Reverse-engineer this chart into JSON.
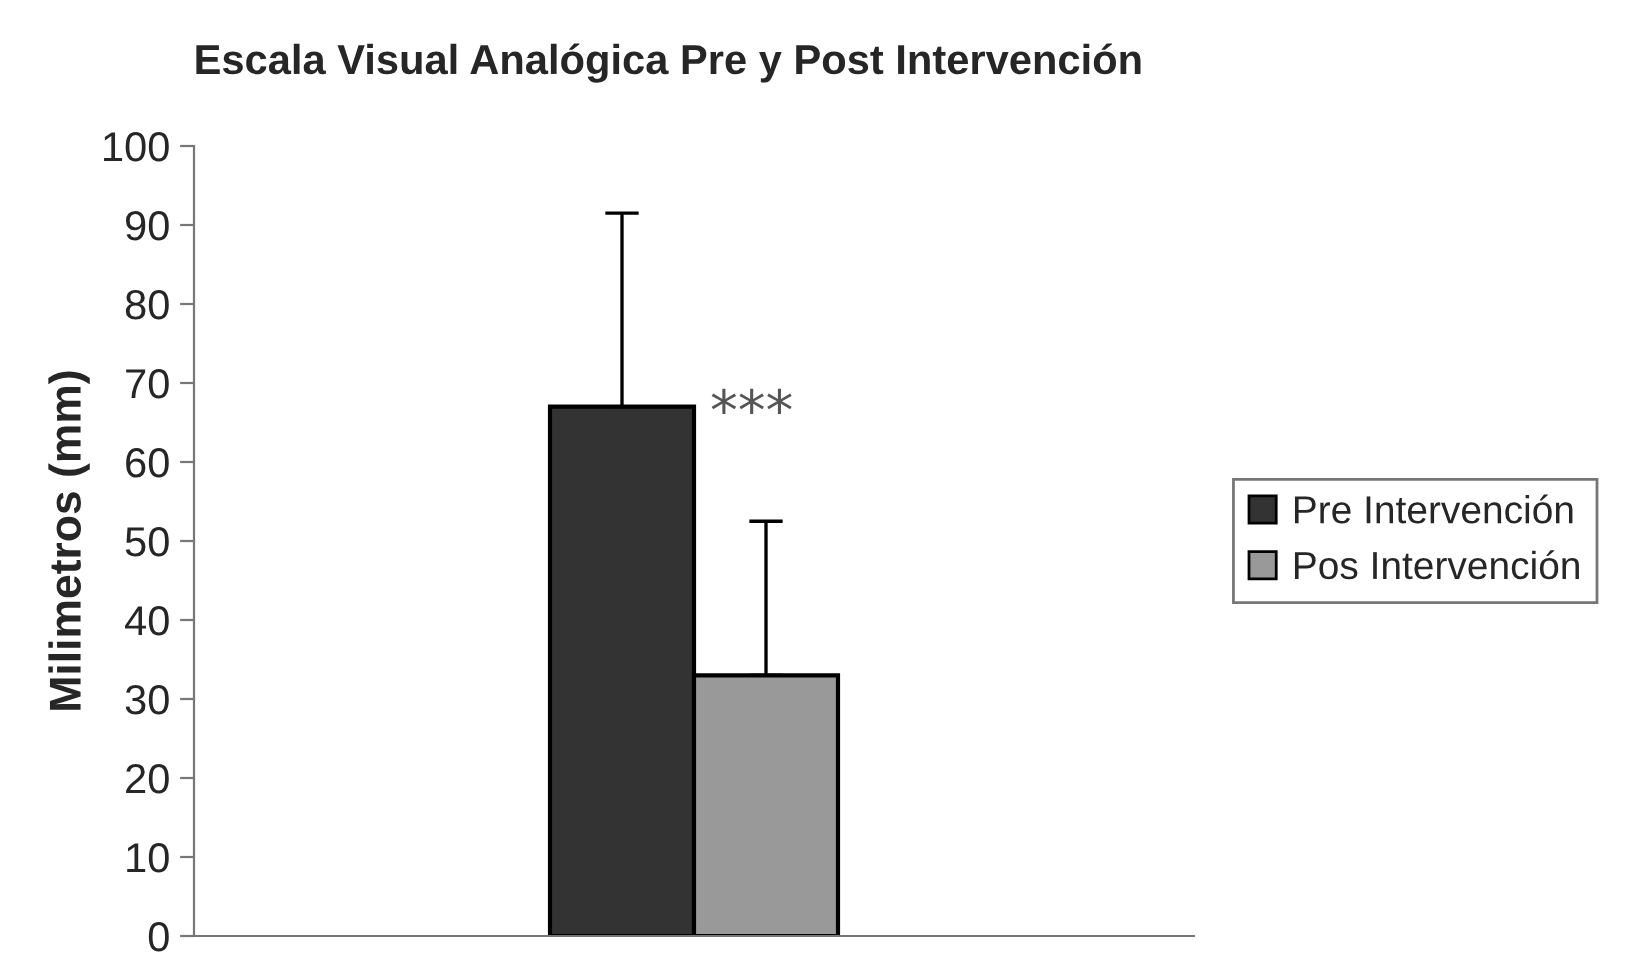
{
  "chart_data": {
    "type": "bar",
    "title": "Escala Visual Analógica Pre y Post Intervención",
    "ylabel": "Milimetros (mm)",
    "categories": [
      null
    ],
    "series": [
      {
        "name": "Pre Intervención",
        "color": "#333333",
        "values": [
          67
        ],
        "errors": [
          [
            67,
            91.5
          ]
        ]
      },
      {
        "name": "Pos Intervención",
        "color": "#999999",
        "values": [
          33
        ],
        "errors": [
          [
            33,
            52.5
          ]
        ]
      }
    ],
    "annotations": [
      "***"
    ],
    "ylim": [
      0,
      100
    ],
    "yticks": [
      0,
      10,
      20,
      30,
      40,
      50,
      60,
      70,
      80,
      90,
      100
    ],
    "grid": false,
    "legend": "right"
  }
}
